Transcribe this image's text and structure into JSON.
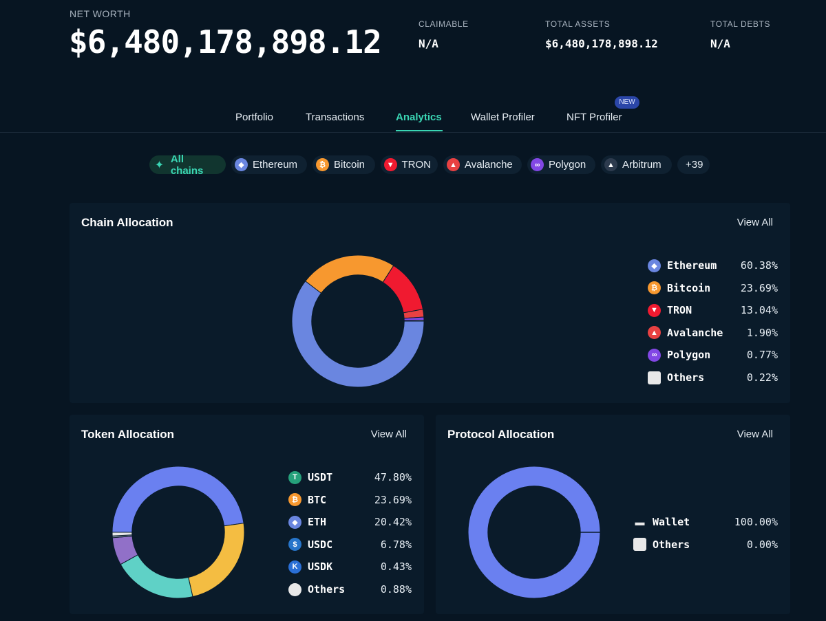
{
  "header": {
    "net_worth_label": "NET WORTH",
    "net_worth_value": "$6,480,178,898.12",
    "claimable_label": "CLAIMABLE",
    "claimable_value": "N/A",
    "total_assets_label": "TOTAL ASSETS",
    "total_assets_value": "$6,480,178,898.12",
    "total_debts_label": "TOTAL DEBTS",
    "total_debts_value": "N/A"
  },
  "tabs": [
    {
      "label": "Portfolio"
    },
    {
      "label": "Transactions"
    },
    {
      "label": "Analytics",
      "active": true
    },
    {
      "label": "Wallet Profiler"
    },
    {
      "label": "NFT Profiler",
      "badge": "NEW"
    }
  ],
  "chains_filter": [
    {
      "label": "All chains",
      "icon": "sparkle-icon",
      "active": true
    },
    {
      "label": "Ethereum",
      "icon": "ethereum-icon"
    },
    {
      "label": "Bitcoin",
      "icon": "bitcoin-icon"
    },
    {
      "label": "TRON",
      "icon": "tron-icon"
    },
    {
      "label": "Avalanche",
      "icon": "avalanche-icon"
    },
    {
      "label": "Polygon",
      "icon": "polygon-icon"
    },
    {
      "label": "Arbitrum",
      "icon": "arbitrum-icon"
    },
    {
      "label": "+39"
    }
  ],
  "chain_allocation": {
    "title": "Chain Allocation",
    "view_all": "View All",
    "items": [
      {
        "name": "Ethereum",
        "pct": "60.38%",
        "value": 60.38,
        "color": "#6a86e0",
        "icon": "ethereum-icon"
      },
      {
        "name": "Bitcoin",
        "pct": "23.69%",
        "value": 23.69,
        "color": "#f7982f",
        "icon": "bitcoin-icon"
      },
      {
        "name": "TRON",
        "pct": "13.04%",
        "value": 13.04,
        "color": "#f01a30",
        "icon": "tron-icon"
      },
      {
        "name": "Avalanche",
        "pct": "1.90%",
        "value": 1.9,
        "color": "#e84142",
        "icon": "avalanche-icon"
      },
      {
        "name": "Polygon",
        "pct": "0.77%",
        "value": 0.77,
        "color": "#8247e5",
        "icon": "polygon-icon"
      },
      {
        "name": "Others",
        "pct": "0.22%",
        "value": 0.22,
        "color": "#e8e8e8",
        "icon": "others-icon"
      }
    ]
  },
  "token_allocation": {
    "title": "Token Allocation",
    "view_all": "View All",
    "items": [
      {
        "name": "USDT",
        "pct": "47.80%",
        "value": 47.8,
        "color": "#6a80f0",
        "icon": "usdt-icon"
      },
      {
        "name": "BTC",
        "pct": "23.69%",
        "value": 23.69,
        "color": "#f4bd42",
        "icon": "btc-icon"
      },
      {
        "name": "ETH",
        "pct": "20.42%",
        "value": 20.42,
        "color": "#5fd1c6",
        "icon": "eth-icon"
      },
      {
        "name": "USDC",
        "pct": "6.78%",
        "value": 6.78,
        "color": "#9170c8",
        "icon": "usdc-icon"
      },
      {
        "name": "USDK",
        "pct": "0.43%",
        "value": 0.43,
        "color": "#7d8ca0",
        "icon": "usdk-icon"
      },
      {
        "name": "Others",
        "pct": "0.88%",
        "value": 0.88,
        "color": "#e8e8e8",
        "icon": "others-icon"
      }
    ]
  },
  "protocol_allocation": {
    "title": "Protocol Allocation",
    "view_all": "View All",
    "items": [
      {
        "name": "Wallet",
        "pct": "100.00%",
        "value": 100.0,
        "color": "#6a80f0",
        "icon": "wallet-icon"
      },
      {
        "name": "Others",
        "pct": "0.00%",
        "value": 0.0,
        "color": "#e8e8e8",
        "icon": "others-icon"
      }
    ]
  }
}
